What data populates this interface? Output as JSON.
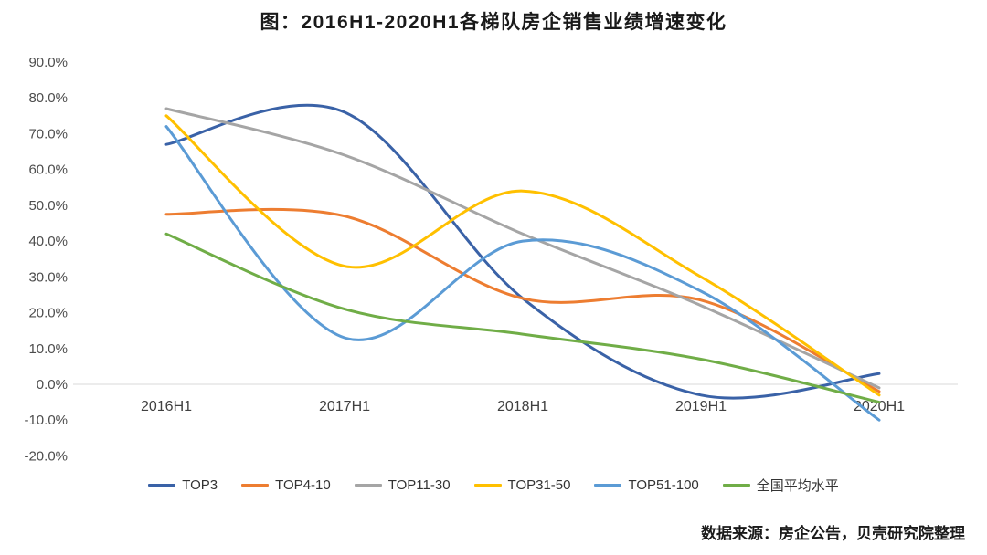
{
  "title": "图：2016H1-2020H1各梯队房企销售业绩增速变化",
  "source": "数据来源：房企公告，贝壳研究院整理",
  "chart_data": {
    "type": "line",
    "title": "图：2016H1-2020H1各梯队房企销售业绩增速变化",
    "categories": [
      "2016H1",
      "2017H1",
      "2018H1",
      "2019H1",
      "2020H1"
    ],
    "series": [
      {
        "name": "TOP3",
        "color": "#3A62A7",
        "values": [
          67,
          76,
          24,
          -3,
          3
        ]
      },
      {
        "name": "TOP4-10",
        "color": "#ED7D31",
        "values": [
          47.5,
          47,
          24,
          23.5,
          -2
        ]
      },
      {
        "name": "TOP11-30",
        "color": "#A5A5A5",
        "values": [
          77,
          64,
          42,
          22,
          -1
        ]
      },
      {
        "name": "TOP31-50",
        "color": "#FFC000",
        "values": [
          75,
          33,
          54,
          30,
          -3
        ]
      },
      {
        "name": "TOP51-100",
        "color": "#5B9BD5",
        "values": [
          72,
          13,
          40,
          26,
          -10
        ]
      },
      {
        "name": "全国平均水平",
        "color": "#70AD47",
        "values": [
          42,
          21,
          14,
          7,
          -5
        ]
      }
    ],
    "y_ticks": [
      "90.0%",
      "80.0%",
      "70.0%",
      "60.0%",
      "50.0%",
      "40.0%",
      "30.0%",
      "20.0%",
      "10.0%",
      "0.0%",
      "-10.0%",
      "-20.0%"
    ],
    "ylim": [
      -20,
      90
    ],
    "unit": "percent",
    "grid": false,
    "legend_position": "bottom",
    "axis_line": "zero-only"
  }
}
